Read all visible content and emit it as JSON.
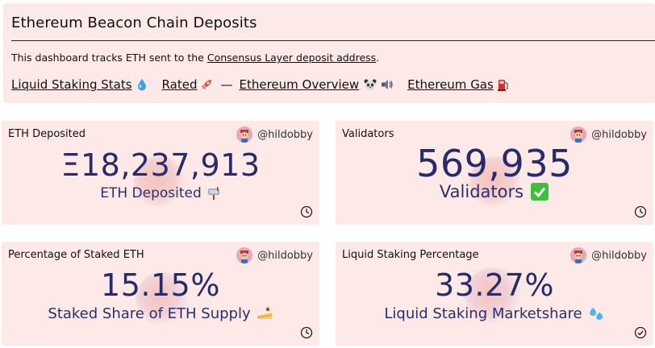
{
  "header": {
    "title": "Ethereum Beacon Chain Deposits",
    "desc_prefix": "This dashboard tracks ETH sent to the ",
    "desc_link": "Consensus Layer deposit address",
    "desc_suffix": ".",
    "links": [
      {
        "label": "Liquid Staking Stats",
        "icon": "droplet-icon"
      },
      {
        "label": "Rated",
        "icon": "rocket-icon"
      },
      {
        "label": "Ethereum Overview",
        "icon": "panda-icon"
      },
      {
        "label": "Ethereum Gas",
        "icon": "fuel-pump-icon"
      }
    ],
    "separator": "—"
  },
  "cards": [
    {
      "title": "ETH Deposited",
      "author": "@hildobby",
      "value": "Ξ18,237,913",
      "label": "ETH Deposited",
      "label_icon": "mailbox-icon",
      "status_icon": "clock-icon"
    },
    {
      "title": "Validators",
      "author": "@hildobby",
      "value": "569,935",
      "label": "Validators",
      "label_icon": "check-box-icon",
      "status_icon": "clock-icon"
    },
    {
      "title": "Percentage of Staked ETH",
      "author": "@hildobby",
      "value": "15.15%",
      "label": "Staked Share of ETH Supply",
      "label_icon": "cake-icon",
      "status_icon": "clock-icon"
    },
    {
      "title": "Liquid Staking Percentage",
      "author": "@hildobby",
      "value": "33.27%",
      "label": "Liquid Staking Marketshare",
      "label_icon": "water-drops-icon",
      "status_icon": "check-circle-icon"
    }
  ],
  "colors": {
    "card_bg": "#fde9e7",
    "value_text": "#272a6b",
    "accent_pink": "#f3b9b0"
  }
}
